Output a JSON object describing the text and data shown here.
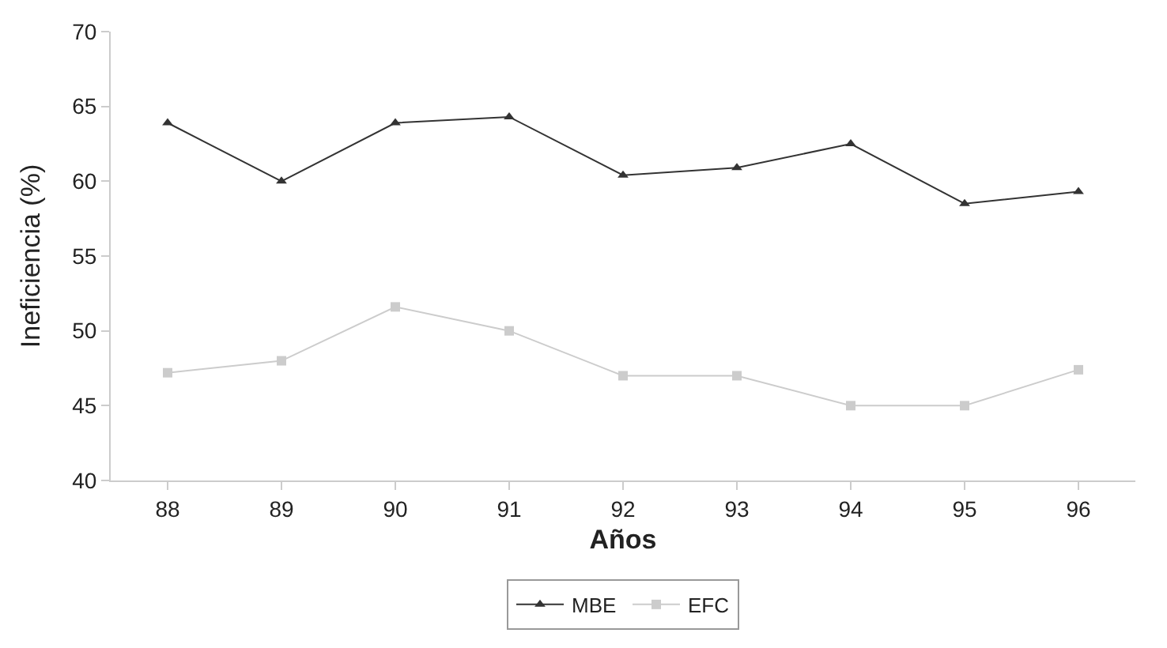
{
  "chart_data": {
    "type": "line",
    "xlabel": "Años",
    "ylabel": "Ineficiencia (%)",
    "categories": [
      "88",
      "89",
      "90",
      "91",
      "92",
      "93",
      "94",
      "95",
      "96"
    ],
    "series": [
      {
        "name": "MBE",
        "color": "#333333",
        "marker": "triangle",
        "values": [
          63.9,
          60.0,
          63.9,
          64.3,
          60.4,
          60.9,
          62.5,
          58.5,
          59.3
        ]
      },
      {
        "name": "EFC",
        "color": "#cccccc",
        "marker": "square",
        "values": [
          47.2,
          48.0,
          51.6,
          50.0,
          47.0,
          47.0,
          45.0,
          45.0,
          47.4
        ]
      }
    ],
    "ylim": [
      40,
      70
    ],
    "yticks": [
      40,
      45,
      50,
      55,
      60,
      65,
      70
    ],
    "legend": "bottom",
    "line_style": "solid"
  }
}
